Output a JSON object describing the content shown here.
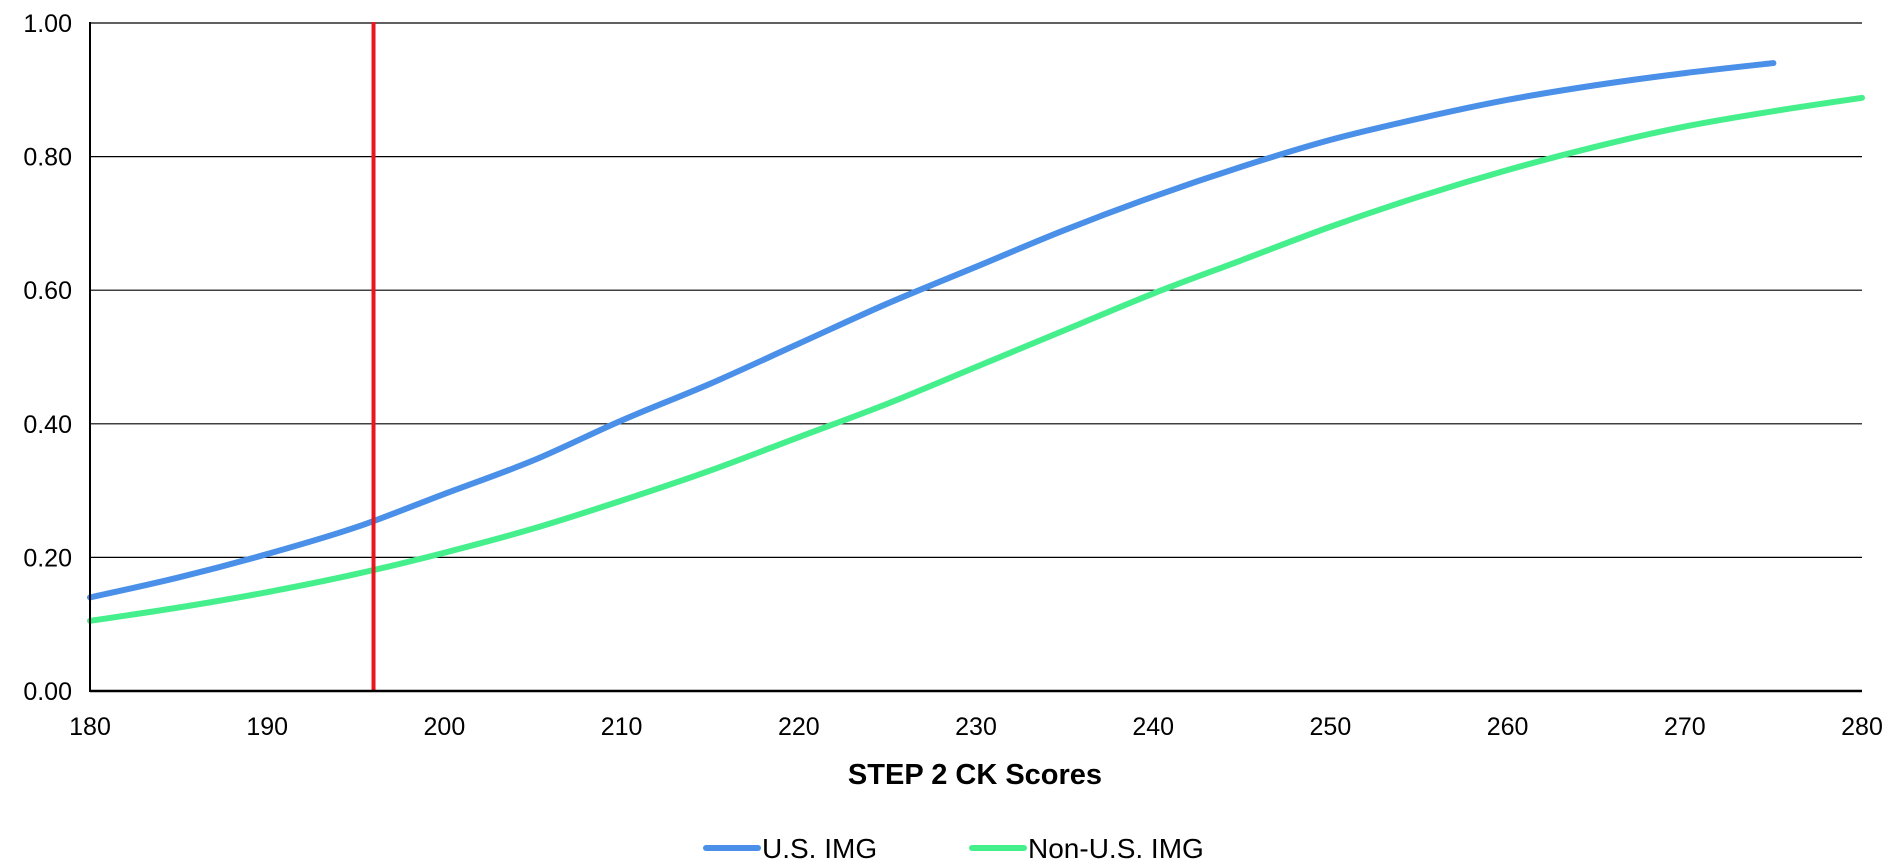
{
  "chart_data": {
    "type": "line",
    "title": "",
    "xlabel": "STEP 2 CK Scores",
    "ylabel": "",
    "xlim": [
      180,
      280
    ],
    "ylim": [
      0,
      1
    ],
    "xticks": [
      "180",
      "190",
      "200",
      "210",
      "220",
      "230",
      "240",
      "250",
      "260",
      "270",
      "280"
    ],
    "yticks": [
      "0.00",
      "0.20",
      "0.40",
      "0.60",
      "0.80",
      "1.00"
    ],
    "grid": "horizontal",
    "legend_position": "bottom",
    "reference_line": {
      "x": 196,
      "color": "#e8171f"
    },
    "series": [
      {
        "name": "U.S. IMG",
        "color": "#4a90e8",
        "x": [
          180,
          185,
          190,
          195,
          200,
          205,
          210,
          215,
          220,
          225,
          230,
          235,
          240,
          245,
          250,
          255,
          260,
          265,
          270,
          275
        ],
        "y": [
          0.14,
          0.17,
          0.205,
          0.245,
          0.295,
          0.345,
          0.405,
          0.46,
          0.52,
          0.58,
          0.635,
          0.69,
          0.74,
          0.785,
          0.825,
          0.857,
          0.885,
          0.907,
          0.925,
          0.94
        ]
      },
      {
        "name": "Non-U.S. IMG",
        "color": "#45f08c",
        "x": [
          180,
          185,
          190,
          195,
          200,
          205,
          210,
          215,
          220,
          225,
          230,
          235,
          240,
          245,
          250,
          255,
          260,
          265,
          270,
          275,
          280
        ],
        "y": [
          0.105,
          0.125,
          0.148,
          0.175,
          0.207,
          0.243,
          0.285,
          0.33,
          0.38,
          0.43,
          0.485,
          0.54,
          0.595,
          0.645,
          0.695,
          0.74,
          0.78,
          0.815,
          0.845,
          0.868,
          0.888
        ]
      }
    ]
  }
}
